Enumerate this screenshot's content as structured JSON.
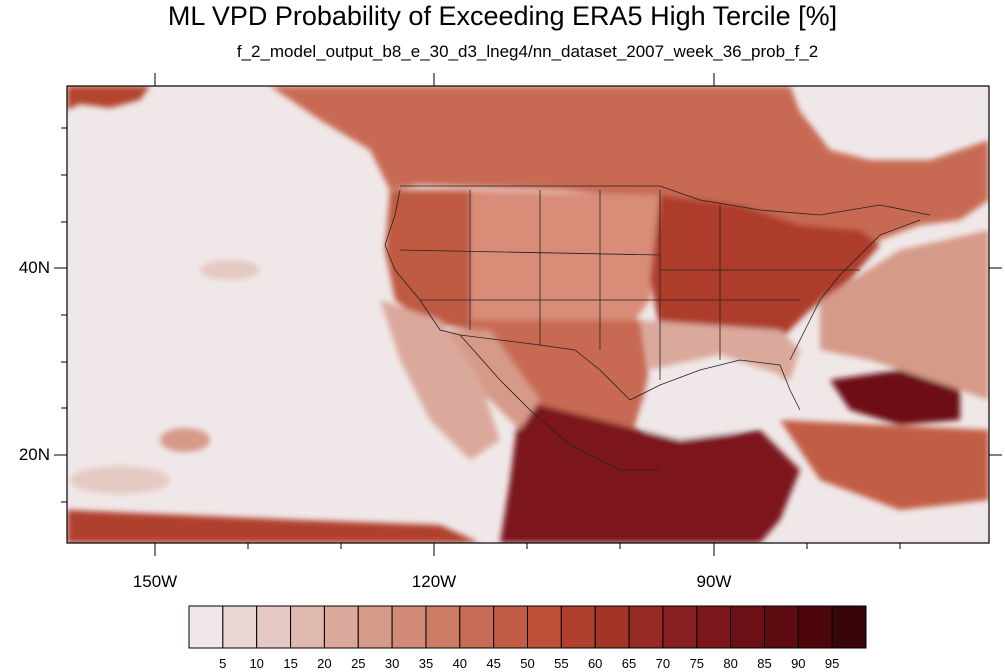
{
  "title": "ML VPD Probability of Exceeding ERA5 High Tercile [%]",
  "subtitle": "f_2_model_output_b8_e_30_d3_lneg4/nn_dataset_2007_week_36_prob_f_2",
  "map": {
    "lon_range": [
      -160,
      -60
    ],
    "lat_range": [
      10,
      59
    ],
    "lat_labels": [
      "40N",
      "20N"
    ],
    "lon_labels": [
      "150W",
      "120W",
      "90W"
    ]
  },
  "colorbar": {
    "labels": [
      "5",
      "10",
      "15",
      "20",
      "25",
      "30",
      "35",
      "40",
      "45",
      "50",
      "55",
      "60",
      "65",
      "70",
      "75",
      "80",
      "85",
      "90",
      "95"
    ],
    "colors": [
      "#f0e8e8",
      "#ead8d5",
      "#e5c9c3",
      "#e0b9ae",
      "#dba99b",
      "#d69a89",
      "#d28b77",
      "#cc7c65",
      "#c76d55",
      "#c25d45",
      "#bd4f38",
      "#b0402e",
      "#a23528",
      "#952a24",
      "#881f20",
      "#7b161b",
      "#6d1016",
      "#5e0b11",
      "#4d070c",
      "#3a0508"
    ]
  }
}
